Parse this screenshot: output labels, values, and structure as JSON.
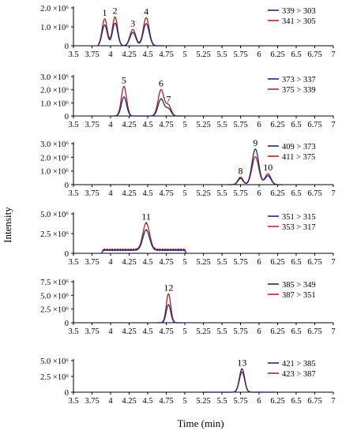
{
  "xlabel": "Time (min)",
  "ylabel": "Intensity",
  "colors": {
    "series_a": "#1f2a6e",
    "series_b": "#b22222"
  },
  "chart_data": [
    {
      "type": "line",
      "xlim": [
        3.5,
        7
      ],
      "ylim": [
        0,
        2000000
      ],
      "x_ticks": [
        "3.5",
        "3.75",
        "4",
        "4.25",
        "4.5",
        "4.75",
        "5",
        "5.25",
        "5.5",
        "5.75",
        "6",
        "6.25",
        "6.5",
        "6.75",
        "7"
      ],
      "y_ticks": [
        {
          "v": 0,
          "label": "0"
        },
        {
          "v": 1000000,
          "label": "1.0 ×10⁶"
        },
        {
          "v": 2000000,
          "label": "2.0 ×10⁶"
        }
      ],
      "legend": [
        "339 > 303",
        "341 > 305"
      ],
      "trace_range": [
        3.85,
        4.7
      ],
      "peaks": [
        {
          "label": "1",
          "x": 3.92,
          "sigma": 0.035,
          "a": 1100000,
          "b": 1420000
        },
        {
          "label": "2",
          "x": 4.06,
          "sigma": 0.035,
          "a": 1200000,
          "b": 1520000
        },
        {
          "label": "3",
          "x": 4.3,
          "sigma": 0.04,
          "a": 700000,
          "b": 860000
        },
        {
          "label": "4",
          "x": 4.48,
          "sigma": 0.04,
          "a": 1170000,
          "b": 1480000
        }
      ]
    },
    {
      "type": "line",
      "xlim": [
        3.5,
        7
      ],
      "ylim": [
        0,
        3000000
      ],
      "x_ticks": [
        "3.5",
        "3.75",
        "4",
        "4.25",
        "4.5",
        "4.75",
        "5",
        "5.25",
        "5.5",
        "5.75",
        "6",
        "6.25",
        "6.5",
        "6.75",
        "7"
      ],
      "y_ticks": [
        {
          "v": 0,
          "label": "0"
        },
        {
          "v": 1000000,
          "label": "1.0 ×10⁶"
        },
        {
          "v": 2000000,
          "label": "2.0 ×10⁶"
        },
        {
          "v": 3000000,
          "label": "3.0 ×10⁶"
        }
      ],
      "legend": [
        "373 > 337",
        "375 > 339"
      ],
      "trace_range": [
        4.05,
        4.95
      ],
      "peaks": [
        {
          "label": "5",
          "x": 4.18,
          "sigma": 0.035,
          "a": 1450000,
          "b": 2250000
        },
        {
          "label": "6",
          "x": 4.68,
          "sigma": 0.04,
          "a": 1300000,
          "b": 2000000
        },
        {
          "label": "7",
          "x": 4.78,
          "sigma": 0.035,
          "a": 550000,
          "b": 800000
        }
      ]
    },
    {
      "type": "line",
      "xlim": [
        3.5,
        7
      ],
      "ylim": [
        0,
        3000000
      ],
      "x_ticks": [
        "3.5",
        "3.75",
        "4",
        "4.25",
        "4.5",
        "4.75",
        "5",
        "5.25",
        "5.5",
        "5.75",
        "6",
        "6.25",
        "6.5",
        "6.75",
        "7"
      ],
      "y_ticks": [
        {
          "v": 0,
          "label": "0"
        },
        {
          "v": 1000000,
          "label": "1.0 ×10⁶"
        },
        {
          "v": 2000000,
          "label": "2.0 ×10⁶"
        },
        {
          "v": 3000000,
          "label": "3.0 ×10⁶"
        }
      ],
      "legend": [
        "409 > 373",
        "411 > 375"
      ],
      "trace_range": [
        5.6,
        6.3
      ],
      "peaks": [
        {
          "label": "8",
          "x": 5.75,
          "sigma": 0.035,
          "a": 450000,
          "b": 550000
        },
        {
          "label": "9",
          "x": 5.95,
          "sigma": 0.045,
          "a": 2600000,
          "b": 2050000
        },
        {
          "label": "10",
          "x": 6.12,
          "sigma": 0.04,
          "a": 650000,
          "b": 800000
        }
      ]
    },
    {
      "type": "line",
      "xlim": [
        3.5,
        7
      ],
      "ylim": [
        0,
        5000000
      ],
      "x_ticks": [
        "3.5",
        "3.75",
        "4",
        "4.25",
        "4.5",
        "4.75",
        "5",
        "5.25",
        "5.5",
        "5.75",
        "6",
        "6.25",
        "6.5",
        "6.75",
        "7"
      ],
      "y_ticks": [
        {
          "v": 0,
          "label": "0"
        },
        {
          "v": 2500000,
          "label": "2.5 ×10⁶"
        },
        {
          "v": 5000000,
          "label": "5.0 ×10⁶"
        }
      ],
      "legend": [
        "351 > 315",
        "353 > 317"
      ],
      "trace_range": [
        3.9,
        5.0
      ],
      "baseline": 450000,
      "peaks": [
        {
          "label": "11",
          "x": 4.48,
          "sigma": 0.045,
          "a": 2550000,
          "b": 3400000
        }
      ]
    },
    {
      "type": "line",
      "xlim": [
        3.5,
        7
      ],
      "ylim": [
        0,
        7500000
      ],
      "x_ticks": [
        "3.5",
        "3.75",
        "4",
        "4.25",
        "4.5",
        "4.75",
        "5",
        "5.25",
        "5.5",
        "5.75",
        "6",
        "6.25",
        "6.5",
        "6.75",
        "7"
      ],
      "y_ticks": [
        {
          "v": 0,
          "label": "0"
        },
        {
          "v": 2500000,
          "label": "2.5 ×10⁶"
        },
        {
          "v": 5000000,
          "label": "5.0 ×10⁶"
        },
        {
          "v": 7500000,
          "label": "7.5 ×10⁶"
        }
      ],
      "legend": [
        "385 > 349",
        "387 > 351"
      ],
      "trace_range": [
        4.65,
        4.95
      ],
      "peaks": [
        {
          "label": "12",
          "x": 4.78,
          "sigma": 0.03,
          "a": 3300000,
          "b": 5300000
        }
      ]
    },
    {
      "type": "line",
      "xlim": [
        3.5,
        7
      ],
      "ylim": [
        0,
        5000000
      ],
      "x_ticks": [
        "3.5",
        "3.75",
        "4",
        "4.25",
        "4.5",
        "4.75",
        "5",
        "5.25",
        "5.5",
        "5.75",
        "6",
        "6.25",
        "6.5",
        "6.75",
        "7"
      ],
      "y_ticks": [
        {
          "v": 0,
          "label": "0"
        },
        {
          "v": 2500000,
          "label": "2.5 ×10⁶"
        },
        {
          "v": 5000000,
          "label": "5.0 ×10⁶"
        }
      ],
      "legend": [
        "421 > 385",
        "423 > 387"
      ],
      "trace_range": [
        5.25,
        6.2
      ],
      "peaks": [
        {
          "label": "13",
          "x": 5.77,
          "sigma": 0.035,
          "a": 3700000,
          "b": 3200000
        }
      ]
    }
  ]
}
